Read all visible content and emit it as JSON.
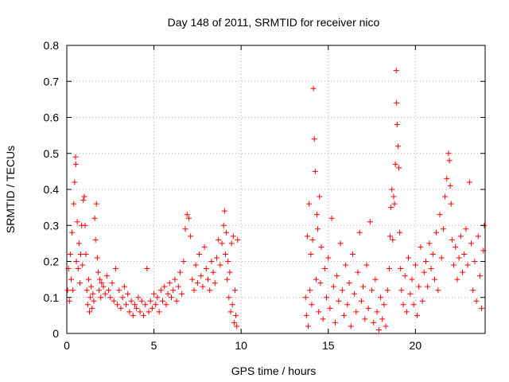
{
  "chart_data": {
    "type": "scatter",
    "title": "Day 148 of 2011, SRMTID for receiver nico",
    "xlabel": "GPS time / hours",
    "ylabel": "SRMTID / TECUs",
    "xlim": [
      0,
      24
    ],
    "ylim": [
      0,
      0.8
    ],
    "x_ticks": [
      0,
      5,
      10,
      15,
      20
    ],
    "x_tick_labels": [
      "0",
      "5",
      "10",
      "15",
      "20"
    ],
    "y_ticks": [
      0,
      0.1,
      0.2,
      0.3,
      0.4,
      0.5,
      0.6,
      0.7,
      0.8
    ],
    "y_tick_labels": [
      "0",
      "0.1",
      "0.2",
      "0.3",
      "0.4",
      "0.5",
      "0.6",
      "0.7",
      "0.8"
    ],
    "grid": true,
    "marker": "+",
    "color": "#ff0000",
    "series": [
      {
        "name": "SRMTID",
        "points": [
          [
            0.05,
            0.12
          ],
          [
            0.1,
            0.18
          ],
          [
            0.15,
            0.09
          ],
          [
            0.2,
            0.22
          ],
          [
            0.25,
            0.15
          ],
          [
            0.3,
            0.28
          ],
          [
            0.35,
            0.12
          ],
          [
            0.4,
            0.36
          ],
          [
            0.45,
            0.42
          ],
          [
            0.5,
            0.49
          ],
          [
            0.52,
            0.47
          ],
          [
            0.55,
            0.2
          ],
          [
            0.6,
            0.31
          ],
          [
            0.65,
            0.18
          ],
          [
            0.7,
            0.25
          ],
          [
            0.75,
            0.14
          ],
          [
            0.8,
            0.22
          ],
          [
            0.85,
            0.3
          ],
          [
            0.9,
            0.19
          ],
          [
            0.95,
            0.37
          ],
          [
            1.0,
            0.38
          ],
          [
            1.05,
            0.3
          ],
          [
            1.1,
            0.22
          ],
          [
            1.15,
            0.12
          ],
          [
            1.2,
            0.08
          ],
          [
            1.25,
            0.15
          ],
          [
            1.3,
            0.06
          ],
          [
            1.35,
            0.1
          ],
          [
            1.4,
            0.13
          ],
          [
            1.45,
            0.07
          ],
          [
            1.5,
            0.11
          ],
          [
            1.55,
            0.09
          ],
          [
            1.6,
            0.32
          ],
          [
            1.65,
            0.26
          ],
          [
            1.7,
            0.36
          ],
          [
            1.75,
            0.21
          ],
          [
            1.8,
            0.17
          ],
          [
            1.85,
            0.12
          ],
          [
            1.9,
            0.15
          ],
          [
            1.95,
            0.1
          ],
          [
            2.0,
            0.14
          ],
          [
            2.1,
            0.13
          ],
          [
            2.2,
            0.11
          ],
          [
            2.3,
            0.16
          ],
          [
            2.4,
            0.12
          ],
          [
            2.5,
            0.1
          ],
          [
            2.6,
            0.14
          ],
          [
            2.7,
            0.09
          ],
          [
            2.8,
            0.18
          ],
          [
            2.9,
            0.08
          ],
          [
            3.0,
            0.12
          ],
          [
            3.1,
            0.07
          ],
          [
            3.2,
            0.1
          ],
          [
            3.3,
            0.13
          ],
          [
            3.4,
            0.08
          ],
          [
            3.5,
            0.11
          ],
          [
            3.6,
            0.06
          ],
          [
            3.7,
            0.09
          ],
          [
            3.8,
            0.05
          ],
          [
            3.9,
            0.08
          ],
          [
            4.0,
            0.07
          ],
          [
            4.1,
            0.1
          ],
          [
            4.2,
            0.06
          ],
          [
            4.3,
            0.09
          ],
          [
            4.4,
            0.05
          ],
          [
            4.5,
            0.08
          ],
          [
            4.6,
            0.18
          ],
          [
            4.7,
            0.06
          ],
          [
            4.8,
            0.09
          ],
          [
            4.9,
            0.07
          ],
          [
            5.0,
            0.11
          ],
          [
            5.1,
            0.08
          ],
          [
            5.2,
            0.1
          ],
          [
            5.3,
            0.06
          ],
          [
            5.4,
            0.12
          ],
          [
            5.5,
            0.09
          ],
          [
            5.6,
            0.13
          ],
          [
            5.7,
            0.08
          ],
          [
            5.8,
            0.11
          ],
          [
            5.9,
            0.14
          ],
          [
            6.0,
            0.1
          ],
          [
            6.1,
            0.12
          ],
          [
            6.2,
            0.15
          ],
          [
            6.3,
            0.09
          ],
          [
            6.4,
            0.13
          ],
          [
            6.5,
            0.17
          ],
          [
            6.6,
            0.11
          ],
          [
            6.7,
            0.2
          ],
          [
            6.8,
            0.29
          ],
          [
            6.9,
            0.33
          ],
          [
            7.0,
            0.32
          ],
          [
            7.1,
            0.27
          ],
          [
            7.2,
            0.15
          ],
          [
            7.3,
            0.12
          ],
          [
            7.4,
            0.19
          ],
          [
            7.5,
            0.14
          ],
          [
            7.6,
            0.22
          ],
          [
            7.7,
            0.16
          ],
          [
            7.8,
            0.13
          ],
          [
            7.9,
            0.24
          ],
          [
            8.0,
            0.18
          ],
          [
            8.1,
            0.15
          ],
          [
            8.2,
            0.12
          ],
          [
            8.3,
            0.2
          ],
          [
            8.4,
            0.17
          ],
          [
            8.5,
            0.14
          ],
          [
            8.6,
            0.21
          ],
          [
            8.7,
            0.26
          ],
          [
            8.8,
            0.19
          ],
          [
            8.9,
            0.25
          ],
          [
            9.0,
            0.3
          ],
          [
            9.05,
            0.34
          ],
          [
            9.1,
            0.22
          ],
          [
            9.15,
            0.28
          ],
          [
            9.2,
            0.15
          ],
          [
            9.25,
            0.2
          ],
          [
            9.3,
            0.1
          ],
          [
            9.35,
            0.17
          ],
          [
            9.4,
            0.06
          ],
          [
            9.45,
            0.25
          ],
          [
            9.5,
            0.08
          ],
          [
            9.55,
            0.27
          ],
          [
            9.6,
            0.03
          ],
          [
            9.65,
            0.12
          ],
          [
            9.7,
            0.05
          ],
          [
            9.75,
            0.02
          ],
          [
            9.8,
            0.26
          ],
          [
            13.7,
            0.1
          ],
          [
            13.75,
            0.05
          ],
          [
            13.8,
            0.27
          ],
          [
            13.85,
            0.02
          ],
          [
            13.9,
            0.36
          ],
          [
            13.95,
            0.12
          ],
          [
            14.0,
            0.22
          ],
          [
            14.05,
            0.08
          ],
          [
            14.1,
            0.26
          ],
          [
            14.15,
            0.68
          ],
          [
            14.2,
            0.54
          ],
          [
            14.25,
            0.45
          ],
          [
            14.3,
            0.15
          ],
          [
            14.35,
            0.33
          ],
          [
            14.4,
            0.29
          ],
          [
            14.45,
            0.06
          ],
          [
            14.5,
            0.38
          ],
          [
            14.55,
            0.14
          ],
          [
            14.6,
            0.24
          ],
          [
            14.7,
            0.04
          ],
          [
            14.8,
            0.18
          ],
          [
            14.9,
            0.1
          ],
          [
            15.0,
            0.21
          ],
          [
            15.1,
            0.07
          ],
          [
            15.2,
            0.32
          ],
          [
            15.3,
            0.13
          ],
          [
            15.4,
            0.03
          ],
          [
            15.5,
            0.16
          ],
          [
            15.6,
            0.09
          ],
          [
            15.7,
            0.25
          ],
          [
            15.8,
            0.12
          ],
          [
            15.9,
            0.05
          ],
          [
            16.0,
            0.19
          ],
          [
            16.1,
            0.08
          ],
          [
            16.2,
            0.14
          ],
          [
            16.3,
            0.02
          ],
          [
            16.4,
            0.22
          ],
          [
            16.5,
            0.11
          ],
          [
            16.6,
            0.06
          ],
          [
            16.7,
            0.17
          ],
          [
            16.8,
            0.28
          ],
          [
            16.9,
            0.09
          ],
          [
            17.0,
            0.13
          ],
          [
            17.1,
            0.04
          ],
          [
            17.2,
            0.19
          ],
          [
            17.3,
            0.07
          ],
          [
            17.4,
            0.31
          ],
          [
            17.5,
            0.12
          ],
          [
            17.6,
            0.03
          ],
          [
            17.7,
            0.15
          ],
          [
            17.8,
            0.06
          ],
          [
            17.9,
            0.01
          ],
          [
            18.0,
            0.1
          ],
          [
            18.1,
            0.04
          ],
          [
            18.2,
            0.08
          ],
          [
            18.3,
            0.02
          ],
          [
            18.4,
            0.12
          ],
          [
            18.5,
            0.18
          ],
          [
            18.55,
            0.27
          ],
          [
            18.6,
            0.35
          ],
          [
            18.65,
            0.4
          ],
          [
            18.7,
            0.26
          ],
          [
            18.75,
            0.38
          ],
          [
            18.8,
            0.36
          ],
          [
            18.85,
            0.47
          ],
          [
            18.9,
            0.73
          ],
          [
            18.92,
            0.64
          ],
          [
            18.95,
            0.58
          ],
          [
            19.0,
            0.52
          ],
          [
            19.05,
            0.46
          ],
          [
            19.1,
            0.28
          ],
          [
            19.15,
            0.18
          ],
          [
            19.2,
            0.12
          ],
          [
            19.3,
            0.08
          ],
          [
            19.4,
            0.16
          ],
          [
            19.5,
            0.06
          ],
          [
            19.6,
            0.21
          ],
          [
            19.7,
            0.11
          ],
          [
            19.8,
            0.15
          ],
          [
            19.9,
            0.08
          ],
          [
            20.0,
            0.19
          ],
          [
            20.1,
            0.05
          ],
          [
            20.2,
            0.13
          ],
          [
            20.3,
            0.24
          ],
          [
            20.4,
            0.09
          ],
          [
            20.5,
            0.17
          ],
          [
            20.6,
            0.2
          ],
          [
            20.7,
            0.13
          ],
          [
            20.8,
            0.25
          ],
          [
            20.9,
            0.18
          ],
          [
            21.0,
            0.22
          ],
          [
            21.1,
            0.15
          ],
          [
            21.2,
            0.28
          ],
          [
            21.3,
            0.12
          ],
          [
            21.4,
            0.33
          ],
          [
            21.5,
            0.21
          ],
          [
            21.6,
            0.29
          ],
          [
            21.7,
            0.38
          ],
          [
            21.8,
            0.43
          ],
          [
            21.9,
            0.5
          ],
          [
            21.95,
            0.48
          ],
          [
            22.0,
            0.41
          ],
          [
            22.05,
            0.36
          ],
          [
            22.1,
            0.26
          ],
          [
            22.2,
            0.19
          ],
          [
            22.3,
            0.24
          ],
          [
            22.4,
            0.15
          ],
          [
            22.5,
            0.21
          ],
          [
            22.6,
            0.27
          ],
          [
            22.7,
            0.17
          ],
          [
            22.8,
            0.22
          ],
          [
            22.9,
            0.29
          ],
          [
            23.0,
            0.19
          ],
          [
            23.1,
            0.42
          ],
          [
            23.2,
            0.25
          ],
          [
            23.3,
            0.12
          ],
          [
            23.4,
            0.2
          ],
          [
            23.5,
            0.09
          ],
          [
            23.6,
            0.27
          ],
          [
            23.7,
            0.16
          ],
          [
            23.8,
            0.07
          ],
          [
            23.9,
            0.23
          ],
          [
            23.95,
            0.3
          ]
        ]
      }
    ]
  }
}
